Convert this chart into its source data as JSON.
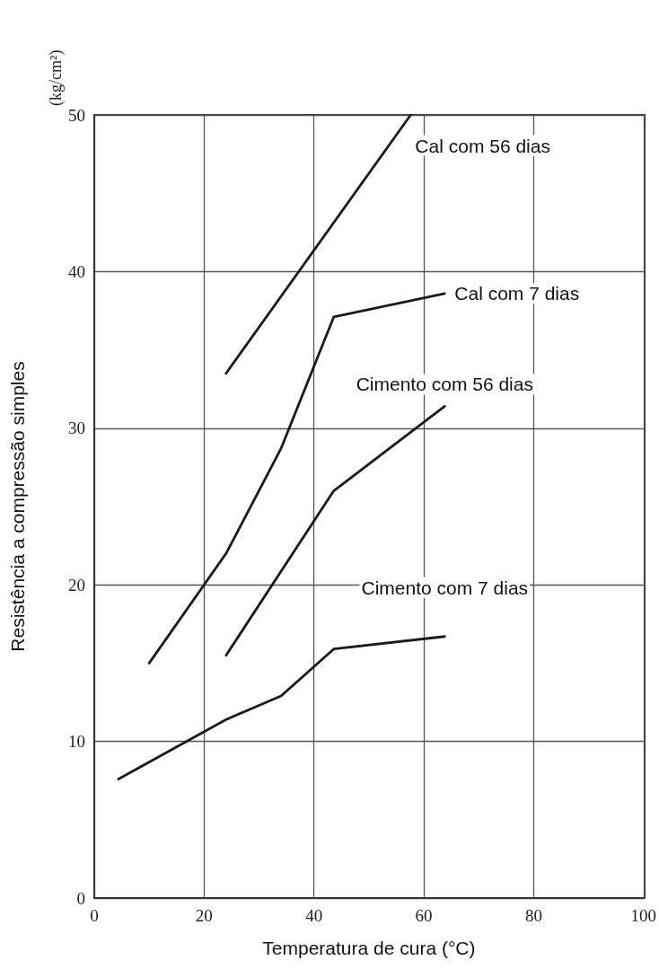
{
  "chart_data": {
    "type": "line",
    "xlabel": "Temperatura de cura (°C)",
    "ylabel": "Resistência a compressão simples",
    "annotations": [
      "(kg/cm²)"
    ],
    "xlim": [
      0,
      100
    ],
    "xticks": [
      0,
      20,
      40,
      60,
      80,
      100
    ],
    "ylim": [
      0,
      50
    ],
    "yticks": [
      0,
      10,
      20,
      30,
      40,
      50
    ],
    "grid": true,
    "legend": false,
    "marker": "none",
    "line_style": "solid",
    "series": [
      {
        "name": "Cal com 56 dias",
        "color": "#1a1a1a",
        "x": [
          24,
          57.6
        ],
        "values": [
          33.5,
          50
        ]
      },
      {
        "name": "Cal com 7 dias",
        "color": "#1a1a1a",
        "x": [
          10,
          24,
          34,
          43.6,
          63.8
        ],
        "values": [
          15,
          22,
          28.7,
          37.1,
          38.6
        ]
      },
      {
        "name": "Cimento com 56 dias",
        "color": "#1a1a1a",
        "x": [
          24,
          43.6,
          63.8
        ],
        "values": [
          15.5,
          26,
          31.4
        ]
      },
      {
        "name": "Cimento com 7 dias",
        "color": "#1a1a1a",
        "x": [
          4.4,
          24,
          34,
          43.6,
          63.8
        ],
        "values": [
          7.6,
          11.4,
          12.9,
          15.9,
          16.7
        ]
      }
    ]
  }
}
